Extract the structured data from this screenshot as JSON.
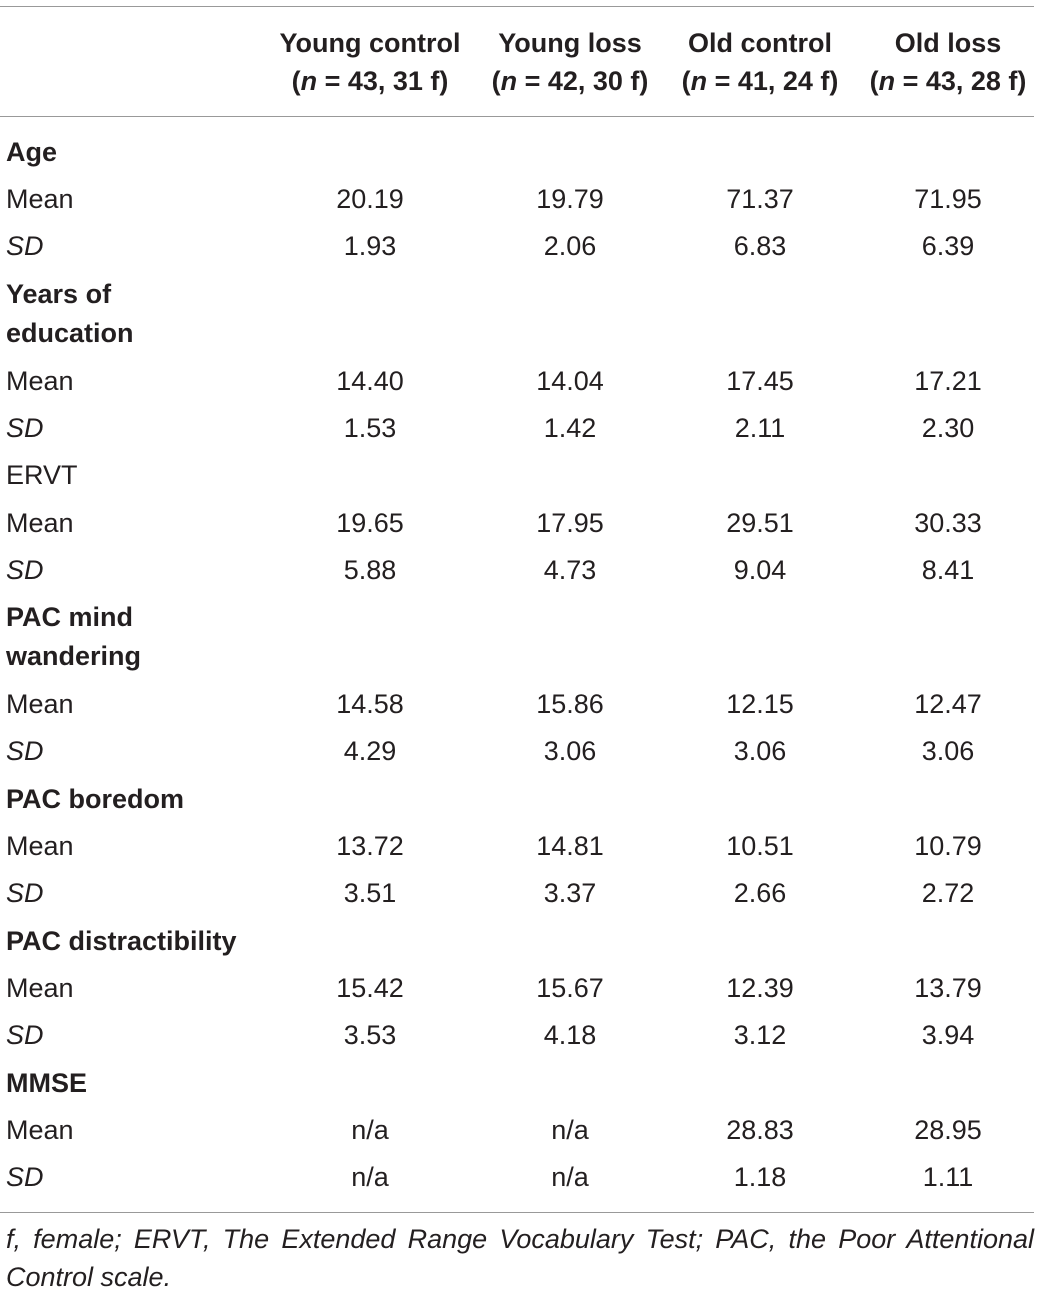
{
  "columns": [
    {
      "label": "Young control",
      "n_prefix": "(",
      "n_italic": "n",
      "n_rest": " = 43, 31 f)"
    },
    {
      "label": "Young loss",
      "n_prefix": "(",
      "n_italic": "n",
      "n_rest": " = 42, 30 f)"
    },
    {
      "label": "Old control",
      "n_prefix": "(",
      "n_italic": "n",
      "n_rest": " = 41, 24 f)"
    },
    {
      "label": "Old loss",
      "n_prefix": "(",
      "n_italic": "n",
      "n_rest": " = 43, 28 f)"
    }
  ],
  "rows": {
    "age": {
      "label": "Age"
    },
    "age_mean": {
      "label": "Mean",
      "values": [
        "20.19",
        "19.79",
        "71.37",
        "71.95"
      ]
    },
    "age_sd": {
      "label": "SD",
      "values": [
        "1.93",
        "2.06",
        "6.83",
        "6.39"
      ]
    },
    "edu": {
      "label_line1": "Years of",
      "label_line2": "education"
    },
    "edu_mean": {
      "label": "Mean",
      "values": [
        "14.40",
        "14.04",
        "17.45",
        "17.21"
      ]
    },
    "edu_sd": {
      "label": "SD",
      "values": [
        "1.53",
        "1.42",
        "2.11",
        "2.30"
      ]
    },
    "ervt": {
      "label": "ERVT"
    },
    "ervt_mean": {
      "label": "Mean",
      "values": [
        "19.65",
        "17.95",
        "29.51",
        "30.33"
      ]
    },
    "ervt_sd": {
      "label": "SD",
      "values": [
        "5.88",
        "4.73",
        "9.04",
        "8.41"
      ]
    },
    "pacmw": {
      "label_line1": "PAC mind",
      "label_line2": "wandering"
    },
    "pacmw_mean": {
      "label": "Mean",
      "values": [
        "14.58",
        "15.86",
        "12.15",
        "12.47"
      ]
    },
    "pacmw_sd": {
      "label": "SD",
      "values": [
        "4.29",
        "3.06",
        "3.06",
        "3.06"
      ]
    },
    "pacb": {
      "label": "PAC boredom"
    },
    "pacb_mean": {
      "label": "Mean",
      "values": [
        "13.72",
        "14.81",
        "10.51",
        "10.79"
      ]
    },
    "pacb_sd": {
      "label": "SD",
      "values": [
        "3.51",
        "3.37",
        "2.66",
        "2.72"
      ]
    },
    "pacd": {
      "label": "PAC distractibility"
    },
    "pacd_mean": {
      "label": "Mean",
      "values": [
        "15.42",
        "15.67",
        "12.39",
        "13.79"
      ]
    },
    "pacd_sd": {
      "label": "SD",
      "values": [
        "3.53",
        "4.18",
        "3.12",
        "3.94"
      ]
    },
    "mmse": {
      "label": "MMSE"
    },
    "mmse_mean": {
      "label": "Mean",
      "values": [
        "n/a",
        "n/a",
        "28.83",
        "28.95"
      ]
    },
    "mmse_sd": {
      "label": "SD",
      "values": [
        "n/a",
        "n/a",
        "1.18",
        "1.11"
      ]
    }
  },
  "footnote": "f, female; ERVT, The Extended Range Vocabulary Test; PAC, the Poor Attentional Control scale."
}
